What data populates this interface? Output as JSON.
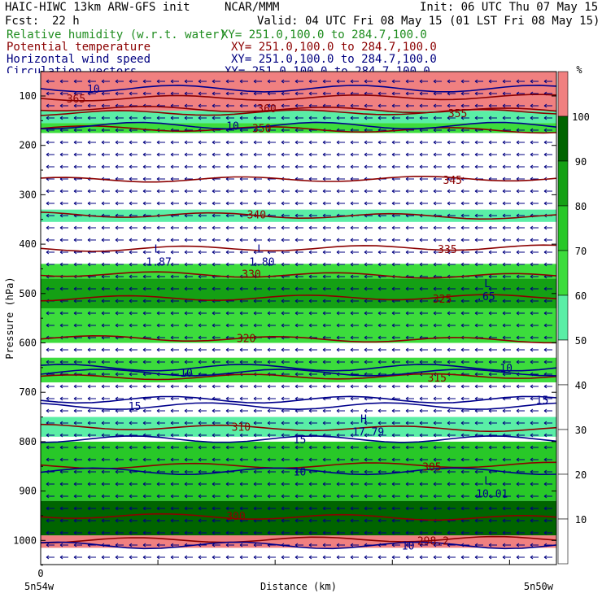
{
  "header": {
    "model": "HAIC-HIWC 13km ARW-GFS init",
    "org": "NCAR/MMM",
    "init": "Init: 06 UTC Thu 07 May 15",
    "fcst_label": "Fcst:",
    "fcst_value": "22 h",
    "valid": "Valid: 04 UTC Fri 08 May 15 (01 LST Fri 08 May 15)"
  },
  "fields": [
    {
      "name": "Relative humidity (w.r.t. water)",
      "xy": "XY= 251.0,100.0 to 284.7,100.0",
      "color": "#1e8c1e"
    },
    {
      "name": "Potential temperature",
      "xy": "XY= 251.0,100.0 to 284.7,100.0",
      "color": "#8b0000"
    },
    {
      "name": "Horizontal wind speed",
      "xy": "XY= 251.0,100.0 to 284.7,100.0",
      "color": "#000080"
    },
    {
      "name": "Circulation vectors",
      "xy": "XY= 251.0,100.0 to 284.7,100.0",
      "color": "#000080"
    }
  ],
  "colorbar": {
    "unit": "%",
    "labels": [
      "10",
      "20",
      "30",
      "40",
      "50",
      "60",
      "70",
      "80",
      "90",
      "100"
    ],
    "colors": [
      "#ffffff",
      "#ffffff",
      "#ffffff",
      "#ffffff",
      "#ffffff",
      "#5aeea6",
      "#3cdc3c",
      "#28c828",
      "#14a014",
      "#006400",
      "#f08080"
    ]
  },
  "chart_data": {
    "type": "heatmap",
    "ylabel": "Pressure (hPa)",
    "xlabel": "Distance (km)",
    "x_start_label": "5n54w",
    "x_end_label": "5n50w",
    "x_origin_label": "0",
    "y_ticks": [
      "100",
      "200",
      "300",
      "400",
      "500",
      "600",
      "700",
      "800",
      "900",
      "1000"
    ],
    "ylim": [
      1050,
      50
    ],
    "y_reversed": true,
    "rh_bands": [
      {
        "p_top": 50,
        "p_bottom": 130,
        "rh": 100
      },
      {
        "p_top": 130,
        "p_bottom": 155,
        "rh": 55
      },
      {
        "p_top": 155,
        "p_bottom": 175,
        "rh": 60
      },
      {
        "p_top": 330,
        "p_bottom": 355,
        "rh": 55
      },
      {
        "p_top": 440,
        "p_bottom": 470,
        "rh": 60
      },
      {
        "p_top": 470,
        "p_bottom": 530,
        "rh": 80
      },
      {
        "p_top": 530,
        "p_bottom": 600,
        "rh": 60
      },
      {
        "p_top": 630,
        "p_bottom": 680,
        "rh": 60
      },
      {
        "p_top": 750,
        "p_bottom": 790,
        "rh": 55
      },
      {
        "p_top": 800,
        "p_bottom": 920,
        "rh": 70
      },
      {
        "p_top": 920,
        "p_bottom": 990,
        "rh": 90
      },
      {
        "p_top": 990,
        "p_bottom": 1015,
        "rh": 100
      }
    ],
    "theta_contours": [
      {
        "value": "365",
        "p": 105
      },
      {
        "value": "360",
        "p": 125
      },
      {
        "value": "355",
        "p": 135
      },
      {
        "value": "350",
        "p": 165
      },
      {
        "value": "345",
        "p": 270
      },
      {
        "value": "340",
        "p": 340
      },
      {
        "value": "335",
        "p": 410
      },
      {
        "value": "330",
        "p": 460
      },
      {
        "value": "325",
        "p": 510
      },
      {
        "value": "320",
        "p": 590
      },
      {
        "value": "315",
        "p": 670
      },
      {
        "value": "310",
        "p": 770
      },
      {
        "value": "305",
        "p": 850
      },
      {
        "value": "300",
        "p": 950
      },
      {
        "value": "298.2",
        "p": 1000
      }
    ],
    "wind_labels": [
      {
        "value": "10",
        "x_frac": 0.09,
        "p": 85
      },
      {
        "value": "10",
        "x_frac": 0.36,
        "p": 160
      },
      {
        "value": "10",
        "x_frac": 0.27,
        "p": 660
      },
      {
        "value": "10",
        "x_frac": 0.89,
        "p": 650
      },
      {
        "value": "15",
        "x_frac": 0.17,
        "p": 728
      },
      {
        "value": "15",
        "x_frac": 0.96,
        "p": 715
      },
      {
        "value": "15",
        "x_frac": 0.49,
        "p": 795
      },
      {
        "value": "10",
        "x_frac": 0.49,
        "p": 860
      },
      {
        "value": "10",
        "x_frac": 0.7,
        "p": 1010
      }
    ],
    "extrema": [
      {
        "type": "L",
        "value": "1.87",
        "x_frac": 0.22,
        "p": 430
      },
      {
        "type": "L",
        "value": "1.80",
        "x_frac": 0.42,
        "p": 430
      },
      {
        "type": "L",
        "value": ".65",
        "x_frac": 0.86,
        "p": 500
      },
      {
        "type": "H",
        "value": "17.79",
        "x_frac": 0.62,
        "p": 775
      },
      {
        "type": "L",
        "value": "10.01",
        "x_frac": 0.86,
        "p": 900
      }
    ]
  }
}
